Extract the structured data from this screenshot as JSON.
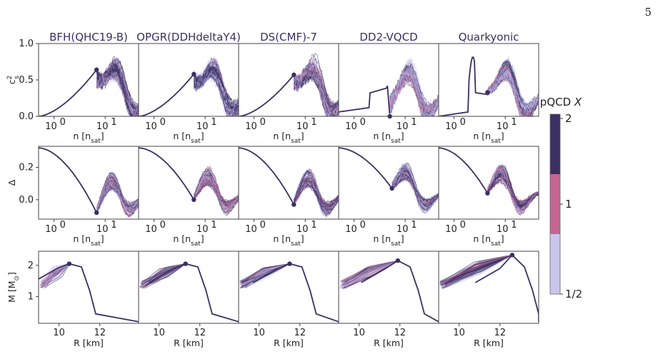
{
  "page_number": "5",
  "colors": {
    "dark": "#3b2f63",
    "pink": "#c4658f",
    "light": "#b8b6e6",
    "axis": "#444444"
  },
  "chart_data": {
    "type": "line",
    "models": [
      "BFH(QHC19-B)",
      "OPGR(DDHdeltaY4)",
      "DS(CMF)-7",
      "DD2-VQCD",
      "Quarkyonic"
    ],
    "rows": [
      {
        "id": "cs2",
        "ylabel": "c_s^2",
        "xlabel_main": "n [n",
        "xlabel_sub": "sat",
        "xlabel_end": "]",
        "xscale": "log",
        "xlim": [
          0.5,
          45
        ],
        "ylim": [
          0,
          1
        ],
        "yticks": [
          "0.0",
          "0.5",
          "1.0"
        ],
        "xticks": [
          {
            "base": "10",
            "exp": "0",
            "v": 1
          },
          {
            "base": "10",
            "exp": "1",
            "v": 10
          }
        ],
        "matching_points": [
          [
            6.8,
            0.64
          ],
          [
            6.0,
            0.58
          ],
          [
            6.0,
            0.57
          ],
          [
            5.0,
            0.0
          ],
          [
            4.5,
            0.33
          ]
        ]
      },
      {
        "id": "delta",
        "ylabel": "Δ",
        "xlabel_main": "n [n",
        "xlabel_sub": "sat",
        "xlabel_end": "]",
        "xscale": "log",
        "xlim": [
          0.5,
          45
        ],
        "ylim": [
          -0.12,
          0.33
        ],
        "yticks": [
          "0.0",
          "0.2"
        ],
        "xticks": [
          {
            "base": "10",
            "exp": "0",
            "v": 1
          },
          {
            "base": "10",
            "exp": "1",
            "v": 10
          }
        ],
        "matching_points": [
          [
            6.8,
            -0.08
          ],
          [
            6.0,
            0.0
          ],
          [
            6.0,
            -0.03
          ],
          [
            5.5,
            0.07
          ],
          [
            4.5,
            0.04
          ]
        ]
      },
      {
        "id": "mr",
        "ylabel": "M [M",
        "ylabel_sub": "⊙",
        "ylabel_end": "]",
        "xlabel_main": "R [km]",
        "xscale": "linear",
        "xlim": [
          9,
          13.9
        ],
        "ylim": [
          0.15,
          2.45
        ],
        "yticks": [
          "1",
          "2"
        ],
        "xticks": [
          {
            "label": "10",
            "v": 10
          },
          {
            "label": "12",
            "v": 12
          }
        ],
        "matching_points": [
          [
            10.5,
            2.05
          ],
          [
            11.3,
            2.05
          ],
          [
            11.5,
            2.05
          ],
          [
            11.9,
            2.15
          ],
          [
            12.6,
            2.33
          ]
        ]
      }
    ],
    "colorbar": {
      "title": "pQCD X",
      "title_main": "pQCD ",
      "title_var": "X",
      "ticks": [
        "2",
        "1",
        "1/2"
      ],
      "colors": [
        "#3b2f63",
        "#c4658f",
        "#c9c6ee"
      ]
    }
  }
}
